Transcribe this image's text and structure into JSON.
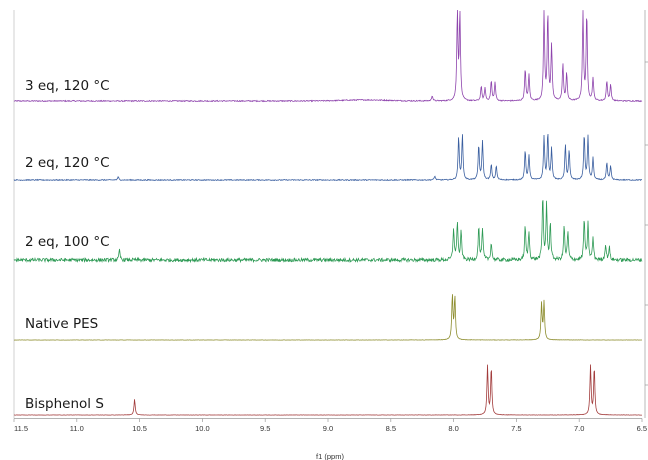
{
  "chart_data": {
    "type": "line",
    "xlabel": "f1 (ppm)",
    "xlim": [
      11.5,
      6.5
    ],
    "x_ticks": [
      "11.5",
      "11.0",
      "10.5",
      "10.0",
      "9.5",
      "9.0",
      "8.5",
      "8.0",
      "7.5",
      "7.0",
      "6.5"
    ],
    "series": [
      {
        "name": "3 eq, 120 °C",
        "color": "#8e44ad",
        "noise": 0.6,
        "hump": {
          "center": 8.7,
          "height": 1.2,
          "width": 0.25
        },
        "peaks": [
          {
            "ppm": 8.17,
            "height": 6
          },
          {
            "ppm": 7.97,
            "height": 95
          },
          {
            "ppm": 7.95,
            "height": 95
          },
          {
            "ppm": 7.78,
            "height": 16
          },
          {
            "ppm": 7.75,
            "height": 14
          },
          {
            "ppm": 7.7,
            "height": 22
          },
          {
            "ppm": 7.67,
            "height": 20
          },
          {
            "ppm": 7.43,
            "height": 35
          },
          {
            "ppm": 7.4,
            "height": 28
          },
          {
            "ppm": 7.28,
            "height": 95
          },
          {
            "ppm": 7.25,
            "height": 95
          },
          {
            "ppm": 7.22,
            "height": 60
          },
          {
            "ppm": 7.13,
            "height": 40
          },
          {
            "ppm": 7.1,
            "height": 30
          },
          {
            "ppm": 6.97,
            "height": 95
          },
          {
            "ppm": 6.94,
            "height": 95
          },
          {
            "ppm": 6.89,
            "height": 25
          },
          {
            "ppm": 6.78,
            "height": 22
          },
          {
            "ppm": 6.75,
            "height": 18
          }
        ]
      },
      {
        "name": "2 eq, 120 °C",
        "color": "#3a5fa0",
        "noise": 0.6,
        "peaks": [
          {
            "ppm": 10.67,
            "height": 4
          },
          {
            "ppm": 8.15,
            "height": 5
          },
          {
            "ppm": 7.96,
            "height": 55
          },
          {
            "ppm": 7.93,
            "height": 58
          },
          {
            "ppm": 7.8,
            "height": 45
          },
          {
            "ppm": 7.77,
            "height": 50
          },
          {
            "ppm": 7.7,
            "height": 20
          },
          {
            "ppm": 7.66,
            "height": 18
          },
          {
            "ppm": 7.43,
            "height": 38
          },
          {
            "ppm": 7.4,
            "height": 32
          },
          {
            "ppm": 7.28,
            "height": 55
          },
          {
            "ppm": 7.25,
            "height": 60
          },
          {
            "ppm": 7.22,
            "height": 40
          },
          {
            "ppm": 7.11,
            "height": 45
          },
          {
            "ppm": 7.08,
            "height": 38
          },
          {
            "ppm": 6.96,
            "height": 58
          },
          {
            "ppm": 6.93,
            "height": 55
          },
          {
            "ppm": 6.89,
            "height": 28
          },
          {
            "ppm": 6.78,
            "height": 22
          },
          {
            "ppm": 6.75,
            "height": 18
          }
        ]
      },
      {
        "name": "2 eq, 100 °C",
        "color": "#2e9a55",
        "noise": 2.2,
        "peaks": [
          {
            "ppm": 10.66,
            "height": 12
          },
          {
            "ppm": 8.0,
            "height": 40
          },
          {
            "ppm": 7.97,
            "height": 48
          },
          {
            "ppm": 7.94,
            "height": 35
          },
          {
            "ppm": 7.8,
            "height": 42
          },
          {
            "ppm": 7.77,
            "height": 38
          },
          {
            "ppm": 7.7,
            "height": 22
          },
          {
            "ppm": 7.43,
            "height": 42
          },
          {
            "ppm": 7.4,
            "height": 35
          },
          {
            "ppm": 7.29,
            "height": 80
          },
          {
            "ppm": 7.26,
            "height": 68
          },
          {
            "ppm": 7.23,
            "height": 45
          },
          {
            "ppm": 7.12,
            "height": 42
          },
          {
            "ppm": 7.09,
            "height": 35
          },
          {
            "ppm": 6.96,
            "height": 52
          },
          {
            "ppm": 6.93,
            "height": 45
          },
          {
            "ppm": 6.89,
            "height": 28
          },
          {
            "ppm": 6.79,
            "height": 20
          },
          {
            "ppm": 6.76,
            "height": 16
          }
        ]
      },
      {
        "name": "Native PES",
        "color": "#8c8c2c",
        "noise": 0.2,
        "peaks": [
          {
            "ppm": 8.01,
            "height": 62
          },
          {
            "ppm": 7.99,
            "height": 60
          },
          {
            "ppm": 7.3,
            "height": 50
          },
          {
            "ppm": 7.28,
            "height": 52
          }
        ]
      },
      {
        "name": "Bisphenol S",
        "color": "#a23b3b",
        "noise": 0.2,
        "peaks": [
          {
            "ppm": 10.54,
            "height": 22
          },
          {
            "ppm": 7.73,
            "height": 68
          },
          {
            "ppm": 7.7,
            "height": 66
          },
          {
            "ppm": 6.91,
            "height": 68
          },
          {
            "ppm": 6.88,
            "height": 66
          }
        ]
      }
    ]
  }
}
